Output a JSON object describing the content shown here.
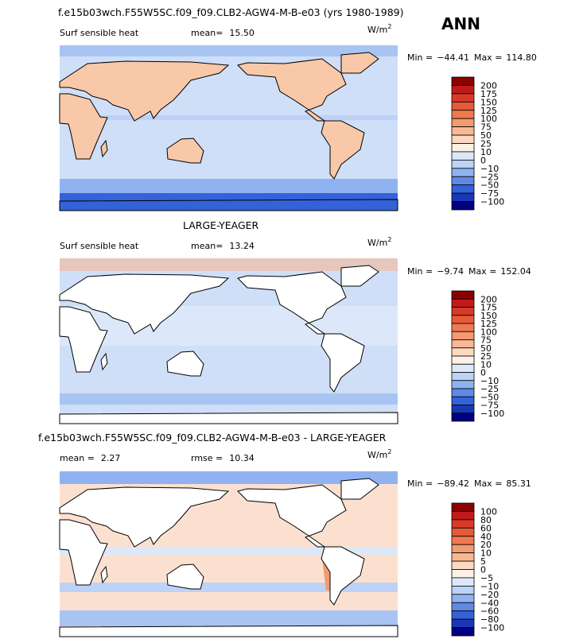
{
  "header": {
    "season": "ANN"
  },
  "colorbar_colors": [
    "#8b0000",
    "#c01a1a",
    "#d83a28",
    "#e65a38",
    "#ee7a50",
    "#f39a70",
    "#f8b896",
    "#fcd8c0",
    "#fdf0e4",
    "#dce8fa",
    "#bcd2f6",
    "#90b2f0",
    "#6088e6",
    "#3462d8",
    "#1838b8",
    "#000080"
  ],
  "panels": [
    {
      "title": "f.e15b03wch.F55W5SC.f09_f09.CLB2-AGW4-M-B-e03 (yrs 1980-1989)",
      "variable": "Surf sensible heat",
      "stats": [
        {
          "label": "mean=",
          "value": "15.50"
        }
      ],
      "units": "W/m",
      "units_exp": "2",
      "min_label": "Min =",
      "min": "−44.41",
      "max_label": "Max =",
      "max": "114.80",
      "levels": [
        "200",
        "175",
        "150",
        "125",
        "100",
        "75",
        "50",
        "25",
        "10",
        "0",
        "−10",
        "−25",
        "−50",
        "−75",
        "−100"
      ]
    },
    {
      "title": "LARGE-YEAGER",
      "variable": "Surf sensible heat",
      "stats": [
        {
          "label": "mean=",
          "value": "13.24"
        }
      ],
      "units": "W/m",
      "units_exp": "2",
      "min_label": "Min =",
      "min": "−9.74",
      "max_label": "Max =",
      "max": "152.04",
      "levels": [
        "200",
        "175",
        "150",
        "125",
        "100",
        "75",
        "50",
        "25",
        "10",
        "0",
        "−10",
        "−25",
        "−50",
        "−75",
        "−100"
      ]
    },
    {
      "title": "f.e15b03wch.F55W5SC.f09_f09.CLB2-AGW4-M-B-e03 - LARGE-YEAGER",
      "stats": [
        {
          "label": "mean =",
          "value": "2.27"
        },
        {
          "label": "rmse =",
          "value": "10.34"
        }
      ],
      "units": "W/m",
      "units_exp": "2",
      "min_label": "Min =",
      "min": "−89.42",
      "max_label": "Max =",
      "max": "85.31",
      "levels": [
        "100",
        "80",
        "60",
        "40",
        "20",
        "10",
        "5",
        "0",
        "−5",
        "−10",
        "−20",
        "−40",
        "−60",
        "−80",
        "−100"
      ]
    }
  ]
}
